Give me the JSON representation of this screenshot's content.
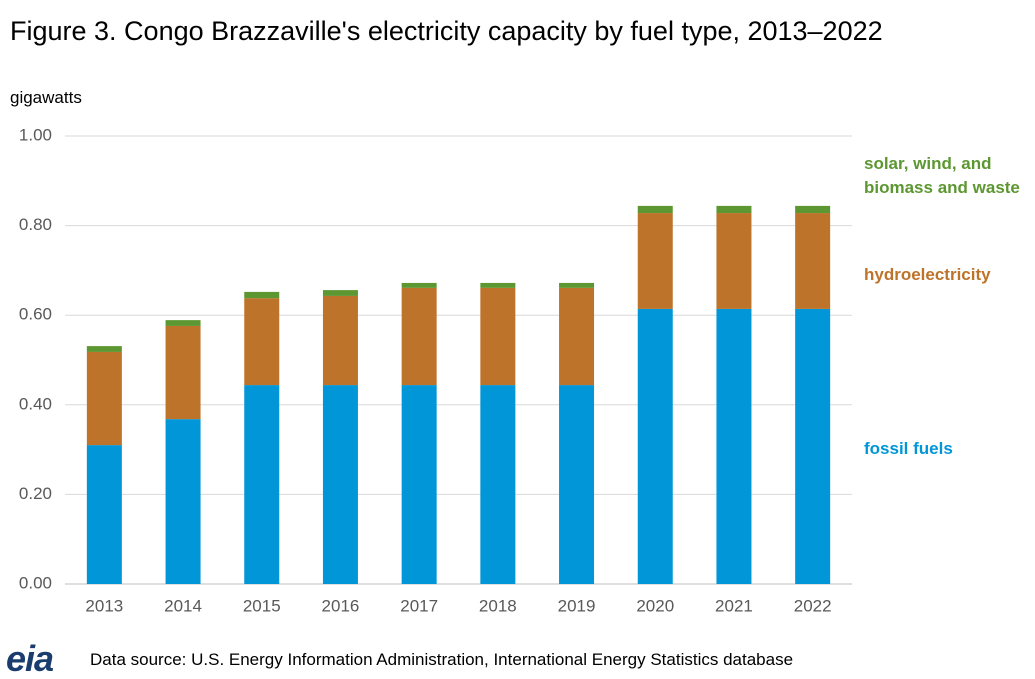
{
  "chart_data": {
    "type": "bar",
    "stacked": true,
    "title": "Figure 3. Congo Brazzaville's electricity capacity by fuel type, 2013–2022",
    "y_label": "gigawatts",
    "categories": [
      "2013",
      "2014",
      "2015",
      "2016",
      "2017",
      "2018",
      "2019",
      "2020",
      "2021",
      "2022"
    ],
    "series": [
      {
        "name": "fossil fuels",
        "color": "#0096d7",
        "values": [
          0.31,
          0.368,
          0.444,
          0.444,
          0.444,
          0.444,
          0.444,
          0.614,
          0.614,
          0.614
        ]
      },
      {
        "name": "hydroelectricity",
        "color": "#bd732a",
        "values": [
          0.208,
          0.208,
          0.194,
          0.199,
          0.217,
          0.217,
          0.217,
          0.214,
          0.214,
          0.214
        ]
      },
      {
        "name": "solar, wind, and biomass and waste",
        "color": "#5d9732",
        "values": [
          0.013,
          0.013,
          0.014,
          0.013,
          0.011,
          0.011,
          0.011,
          0.016,
          0.016,
          0.016
        ]
      }
    ],
    "ylim": [
      0,
      1
    ],
    "yticks": [
      {
        "value": 0,
        "label": "0.00"
      },
      {
        "value": 0.2,
        "label": "0.20"
      },
      {
        "value": 0.4,
        "label": "0.40"
      },
      {
        "value": 0.6,
        "label": "0.60"
      },
      {
        "value": 0.8,
        "label": "0.80"
      },
      {
        "value": 1,
        "label": "1.00"
      }
    ],
    "grid": true,
    "source": "Data source: U.S. Energy Information Administration, International Energy Statistics database",
    "logo": "eia"
  }
}
